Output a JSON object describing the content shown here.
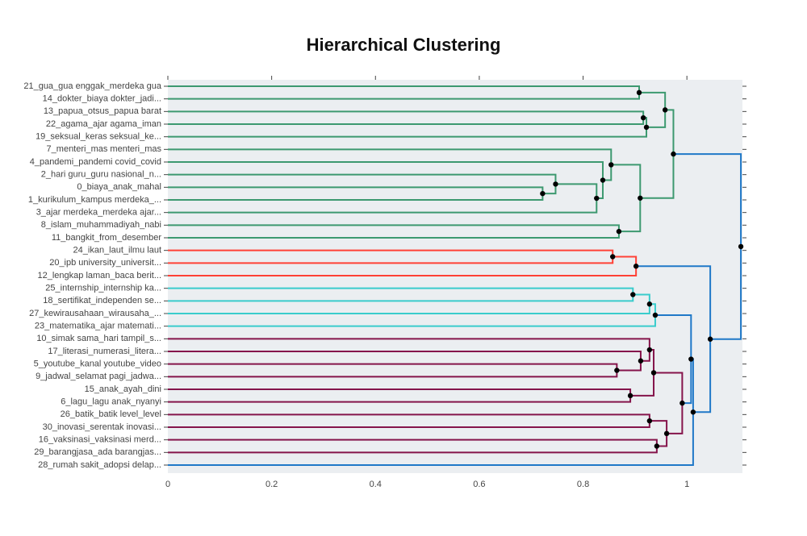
{
  "chart_data": {
    "type": "dendrogram",
    "title": "Hierarchical Clustering",
    "orientation": "horizontal",
    "categories": [
      "21_gua_gua enggak_merdeka gua",
      "14_dokter_biaya dokter_jadi...",
      "13_papua_otsus_papua barat",
      "22_agama_ajar agama_iman",
      "19_seksual_keras seksual_ke...",
      "7_menteri_mas menteri_mas",
      "4_pandemi_pandemi covid_covid",
      "2_hari guru_guru nasional_n...",
      "0_biaya_anak_mahal",
      "1_kurikulum_kampus merdeka_...",
      "3_ajar merdeka_merdeka ajar...",
      "8_islam_muhammadiyah_nabi",
      "11_bangkit_from_desember",
      "24_ikan_laut_ilmu laut",
      "20_ipb university_universit...",
      "12_lengkap laman_baca berit...",
      "25_internship_internship ka...",
      "18_sertifikat_independen se...",
      "27_kewirausahaan_wirausaha_...",
      "23_matematika_ajar matemati...",
      "10_simak sama_hari tampil_s...",
      "17_literasi_numerasi_litera...",
      "5_youtube_kanal youtube_video",
      "9_jadwal_selamat pagi_jadwa...",
      "15_anak_ayah_dini",
      "6_lagu_lagu anak_nyanyi",
      "26_batik_batik level_level",
      "30_inovasi_serentak inovasi...",
      "16_vaksinasi_vaksinasi merd...",
      "29_barangjasa_ada barangjas...",
      "28_rumah sakit_adopsi delap..."
    ],
    "merges": [
      {
        "children": [
          0,
          1
        ],
        "distance": 0.908,
        "color": "#3D9970"
      },
      {
        "children": [
          2,
          3
        ],
        "distance": 0.916,
        "color": "#3D9970"
      },
      {
        "children": [
          32,
          4
        ],
        "distance": 0.922,
        "color": "#3D9970"
      },
      {
        "children": [
          31,
          33
        ],
        "distance": 0.958,
        "color": "#3D9970"
      },
      {
        "children": [
          8,
          9
        ],
        "distance": 0.722,
        "color": "#3D9970"
      },
      {
        "children": [
          7,
          35
        ],
        "distance": 0.747,
        "color": "#3D9970"
      },
      {
        "children": [
          36,
          10
        ],
        "distance": 0.826,
        "color": "#3D9970"
      },
      {
        "children": [
          6,
          37
        ],
        "distance": 0.838,
        "color": "#3D9970"
      },
      {
        "children": [
          5,
          38
        ],
        "distance": 0.854,
        "color": "#3D9970"
      },
      {
        "children": [
          11,
          12
        ],
        "distance": 0.869,
        "color": "#3D9970"
      },
      {
        "children": [
          39,
          40
        ],
        "distance": 0.91,
        "color": "#3D9970"
      },
      {
        "children": [
          34,
          41
        ],
        "distance": 0.974,
        "color": "#3D9970"
      },
      {
        "children": [
          13,
          14
        ],
        "distance": 0.857,
        "color": "#FF4136"
      },
      {
        "children": [
          43,
          15
        ],
        "distance": 0.902,
        "color": "#FF4136"
      },
      {
        "children": [
          16,
          17
        ],
        "distance": 0.896,
        "color": "#39CCCC"
      },
      {
        "children": [
          45,
          18
        ],
        "distance": 0.928,
        "color": "#39CCCC"
      },
      {
        "children": [
          46,
          19
        ],
        "distance": 0.939,
        "color": "#39CCCC"
      },
      {
        "children": [
          22,
          23
        ],
        "distance": 0.865,
        "color": "#85144B"
      },
      {
        "children": [
          21,
          48
        ],
        "distance": 0.911,
        "color": "#85144B"
      },
      {
        "children": [
          20,
          49
        ],
        "distance": 0.928,
        "color": "#85144B"
      },
      {
        "children": [
          24,
          25
        ],
        "distance": 0.891,
        "color": "#85144B"
      },
      {
        "children": [
          50,
          51
        ],
        "distance": 0.936,
        "color": "#85144B"
      },
      {
        "children": [
          26,
          27
        ],
        "distance": 0.928,
        "color": "#85144B"
      },
      {
        "children": [
          28,
          29
        ],
        "distance": 0.942,
        "color": "#85144B"
      },
      {
        "children": [
          53,
          54
        ],
        "distance": 0.961,
        "color": "#85144B"
      },
      {
        "children": [
          52,
          55
        ],
        "distance": 0.991,
        "color": "#85144B"
      },
      {
        "children": [
          47,
          56
        ],
        "distance": 1.008,
        "color": "#1F78C8"
      },
      {
        "children": [
          57,
          30
        ],
        "distance": 1.012,
        "color": "#1F78C8"
      },
      {
        "children": [
          44,
          58
        ],
        "distance": 1.045,
        "color": "#1F78C8"
      },
      {
        "children": [
          42,
          59
        ],
        "distance": 1.104,
        "color": "#1F78C8"
      }
    ],
    "xlim": [
      0,
      1.107
    ],
    "xticks": [
      0,
      0.2,
      0.4,
      0.6,
      0.8,
      1
    ]
  }
}
